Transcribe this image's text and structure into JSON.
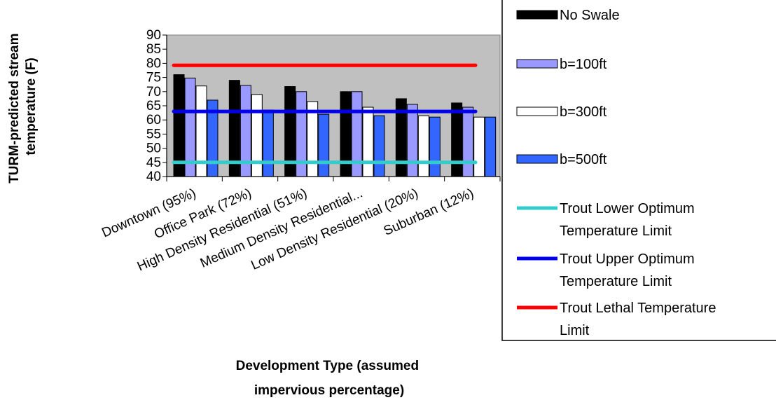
{
  "chart_data": {
    "type": "bar",
    "title": "",
    "xlabel": "Development Type (assumed impervious percentage)",
    "xlabel_lines": [
      "Development Type (assumed",
      "impervious percentage)"
    ],
    "ylabel": "TURM-predicted stream temperature (F)",
    "ylabel_lines": [
      "TURM-predicted stream",
      "temperature (F)"
    ],
    "ylim": [
      40,
      90
    ],
    "yticks": [
      90,
      85,
      80,
      75,
      70,
      65,
      60,
      55,
      50,
      45,
      40
    ],
    "grid": false,
    "legend_position": "right",
    "plot_background": "#c0c0c0",
    "categories": [
      "Downtown (95%)",
      "Office Park (72%)",
      "High Density Residential (51%)",
      "Medium Density Residential...",
      "Low Density Residential (20%)",
      "Suburban (12%)"
    ],
    "series": [
      {
        "name": "No Swale",
        "color": "#000000",
        "values": [
          76,
          74,
          71.8,
          70,
          67.5,
          66
        ]
      },
      {
        "name": "b=100ft",
        "color": "#9999ff",
        "values": [
          74.8,
          72.2,
          70,
          70,
          65.5,
          64.5
        ]
      },
      {
        "name": "b=300ft",
        "color": "#ffffff",
        "values": [
          72,
          69,
          66.5,
          64.5,
          61.5,
          61
        ]
      },
      {
        "name": "b=500ft",
        "color": "#3366ff",
        "values": [
          67,
          63.5,
          62,
          61.5,
          61,
          61
        ]
      }
    ],
    "reference_lines": [
      {
        "name": "Trout Lower Optimum Temperature Limit",
        "name_lines": [
          "Trout Lower Optimum",
          "Temperature Limit"
        ],
        "color": "#33cccc",
        "value": 45
      },
      {
        "name": "Trout Upper Optimum Temperature Limit",
        "name_lines": [
          "Trout Upper Optimum",
          "Temperature Limit"
        ],
        "color": "#0000ee",
        "value": 63
      },
      {
        "name": "Trout Lethal Temperature Limit",
        "name_lines": [
          "Trout Lethal Temperature",
          "Limit"
        ],
        "color": "#ff0000",
        "value": 79.3
      }
    ]
  }
}
